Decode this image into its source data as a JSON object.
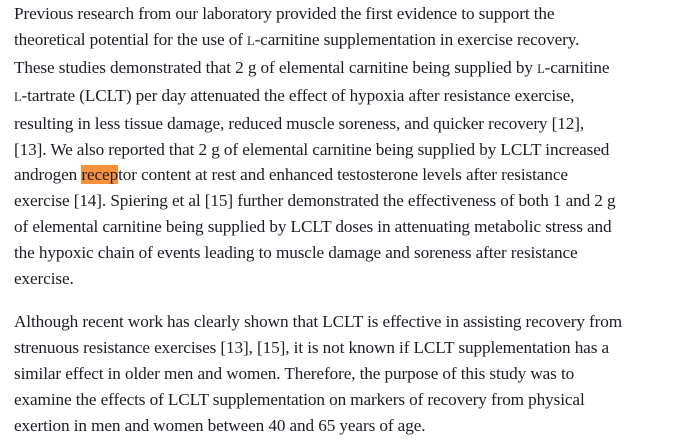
{
  "document": {
    "highlight_color": "#f7913a",
    "paragraphs": [
      {
        "lines": [
          {
            "text": "Previous research from our laboratory provided the first evidence to support the"
          },
          {
            "pre": "theoretical potential for the use of ",
            "sc": "l",
            "post": "-carnitine supplementation in exercise recovery."
          },
          {
            "pre": "These studies demonstrated that 2 g of elemental carnitine being supplied by ",
            "sc": "l",
            "post": "-carnitine"
          },
          {
            "sc": "l",
            "post": "-tartrate (LCLT) per day attenuated the effect of hypoxia after resistance exercise,"
          },
          {
            "text": "resulting in less tissue damage, reduced muscle soreness, and quicker recovery [12],"
          },
          {
            "text": "[13]. We also reported that 2 g of elemental carnitine being supplied by LCLT increased"
          },
          {
            "pre": "androgen ",
            "highlight": "recep",
            "post": "tor content at rest and enhanced testosterone levels after resistance"
          },
          {
            "text": "exercise [14]. Spiering et al [15] further demonstrated the effectiveness of both 1 and 2 g"
          },
          {
            "text": "of elemental carnitine being supplied by LCLT doses in attenuating metabolic stress and"
          },
          {
            "text": "the hypoxic chain of events leading to muscle damage and soreness after resistance"
          },
          {
            "text": "exercise."
          }
        ]
      },
      {
        "lines": [
          {
            "text": "Although recent work has clearly shown that LCLT is effective in assisting recovery from"
          },
          {
            "text": "strenuous resistance exercises [13], [15], it is not known if LCLT supplementation has a"
          },
          {
            "text": "similar effect in older men and women. Therefore, the purpose of this study was to"
          },
          {
            "text": "examine the effects of LCLT supplementation on markers of recovery from physical"
          },
          {
            "text": "exertion in men and women between 40 and 65 years of age."
          }
        ]
      }
    ]
  }
}
